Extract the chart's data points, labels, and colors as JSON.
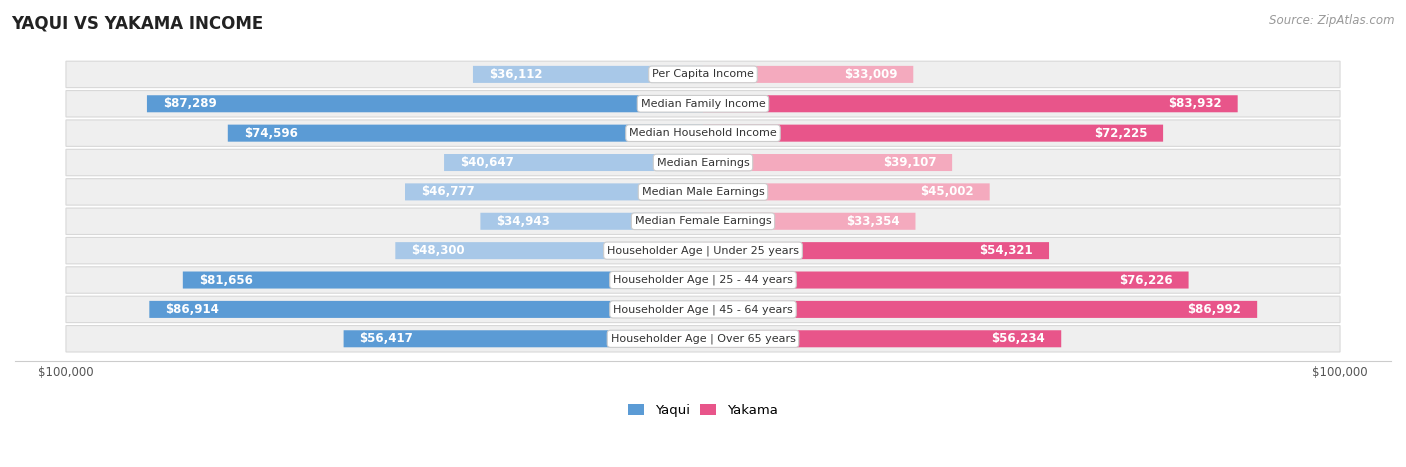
{
  "title": "YAQUI VS YAKAMA INCOME",
  "source": "Source: ZipAtlas.com",
  "categories": [
    "Per Capita Income",
    "Median Family Income",
    "Median Household Income",
    "Median Earnings",
    "Median Male Earnings",
    "Median Female Earnings",
    "Householder Age | Under 25 years",
    "Householder Age | 25 - 44 years",
    "Householder Age | 45 - 64 years",
    "Householder Age | Over 65 years"
  ],
  "yaqui_values": [
    36112,
    87289,
    74596,
    40647,
    46777,
    34943,
    48300,
    81656,
    86914,
    56417
  ],
  "yakama_values": [
    33009,
    83932,
    72225,
    39107,
    45002,
    33354,
    54321,
    76226,
    86992,
    56234
  ],
  "yaqui_labels": [
    "$36,112",
    "$87,289",
    "$74,596",
    "$40,647",
    "$46,777",
    "$34,943",
    "$48,300",
    "$81,656",
    "$86,914",
    "$56,417"
  ],
  "yakama_labels": [
    "$33,009",
    "$83,932",
    "$72,225",
    "$39,107",
    "$45,002",
    "$33,354",
    "$54,321",
    "$76,226",
    "$86,992",
    "$56,234"
  ],
  "max_val": 100000,
  "yaqui_color_light": "#a8c8e8",
  "yaqui_color_dark": "#5b9bd5",
  "yakama_color_light": "#f4aabe",
  "yakama_color_dark": "#e8558a",
  "label_inside_color": "#ffffff",
  "label_outside_color": "#444444",
  "row_bg_color": "#efefef",
  "row_border_color": "#d8d8d8",
  "bg_color": "#ffffff",
  "title_fontsize": 12,
  "source_fontsize": 8.5,
  "bar_label_fontsize": 8.5,
  "cat_label_fontsize": 8.0,
  "legend_fontsize": 9.5,
  "axis_label_fontsize": 8.5,
  "inside_threshold": 0.3
}
